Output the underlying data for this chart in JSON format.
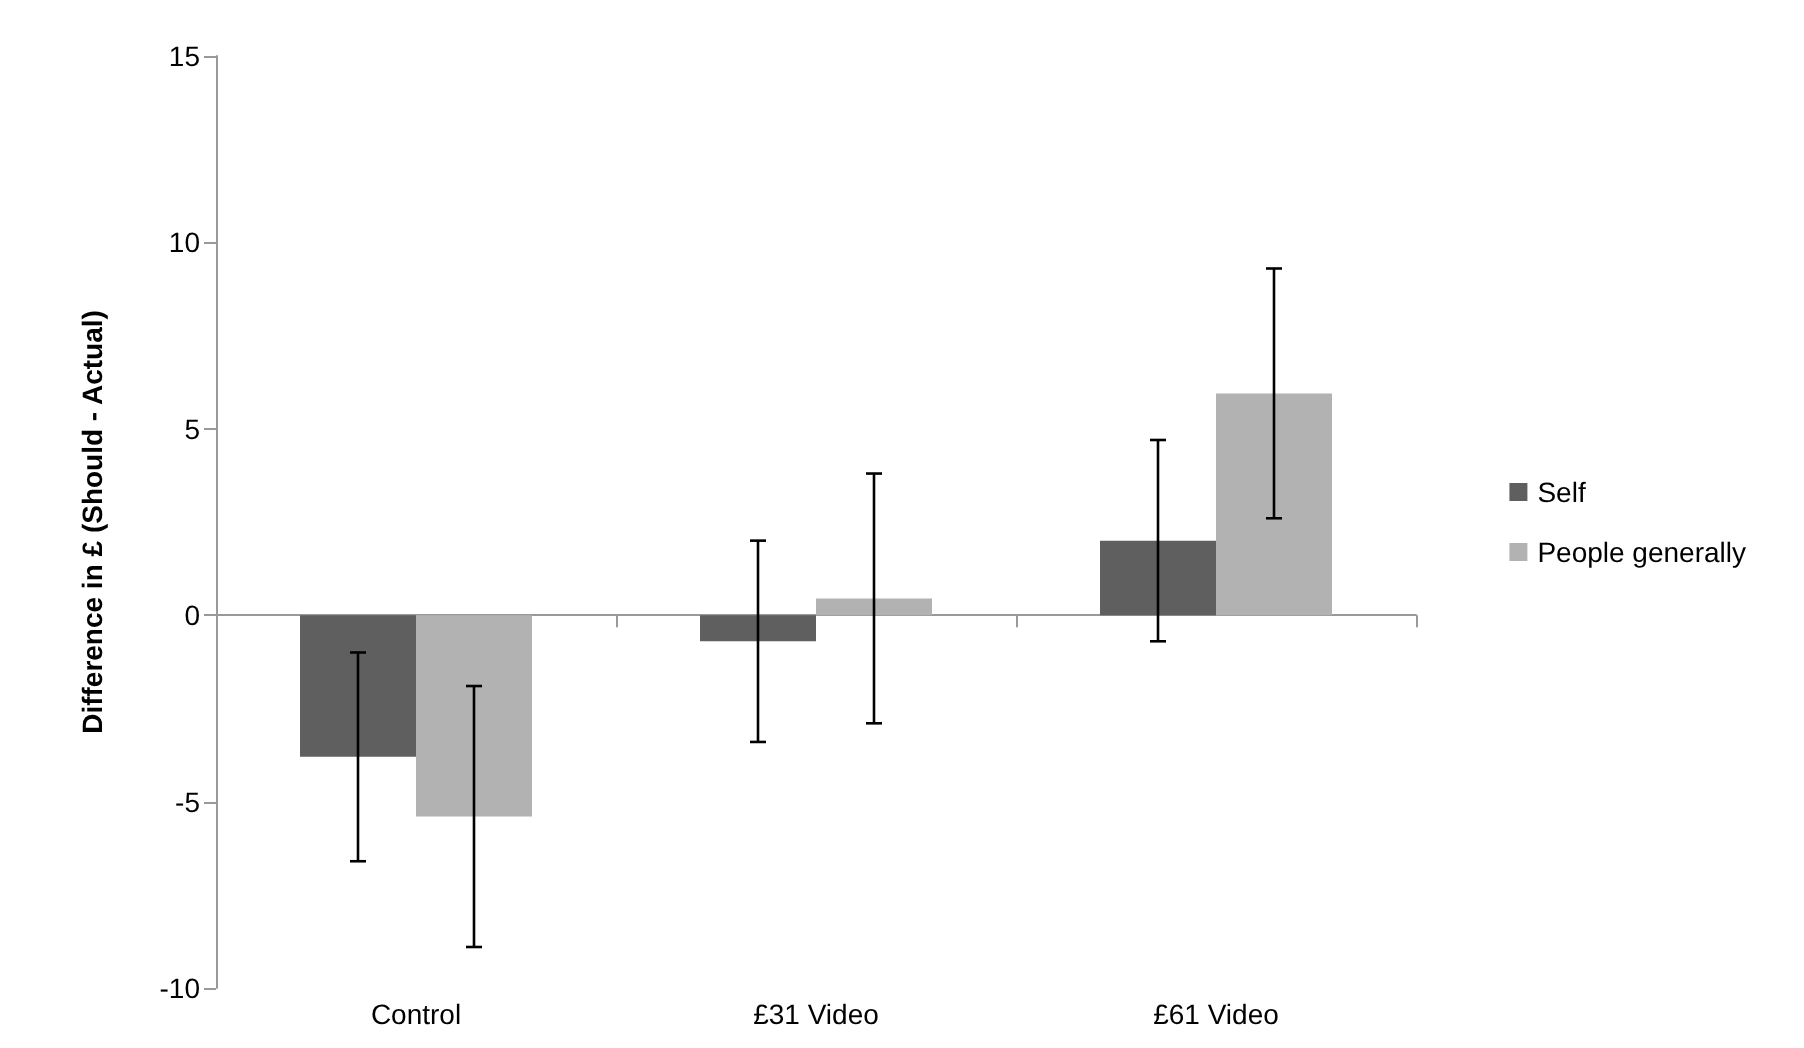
{
  "chart_data": {
    "type": "bar",
    "ylabel": "Difference in £ (Should - Actual)",
    "categories": [
      "Control",
      "£31 Video",
      "£61 Video"
    ],
    "series": [
      {
        "name": "Self",
        "color": "#5f5f5f",
        "values": [
          -3.8,
          -0.7,
          2.0
        ],
        "errors": [
          2.8,
          2.7,
          2.7
        ]
      },
      {
        "name": "People generally",
        "color": "#b2b2b2",
        "values": [
          -5.4,
          0.45,
          5.95
        ],
        "errors": [
          3.5,
          3.35,
          3.35
        ]
      }
    ],
    "ylim": [
      -10,
      15
    ],
    "yticks": [
      -10,
      -5,
      0,
      5,
      10,
      15
    ],
    "legend": "right"
  }
}
